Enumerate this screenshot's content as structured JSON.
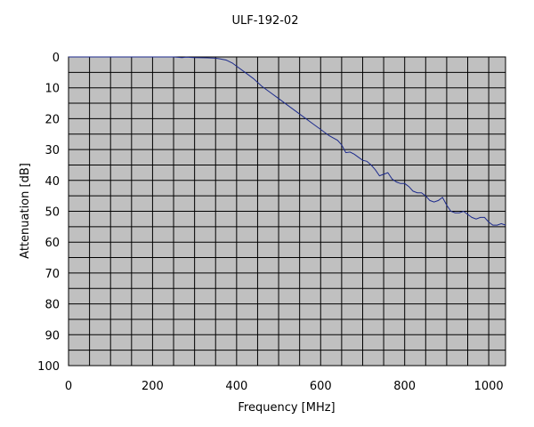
{
  "chart_data": {
    "type": "line",
    "title": "ULF-192-02",
    "xlabel": "Frequency [MHz]",
    "ylabel": "Attenuation [dB]",
    "xlim": [
      0,
      1040
    ],
    "ylim": [
      0,
      100
    ],
    "y_inverted": true,
    "x_ticks": [
      0,
      200,
      400,
      600,
      800,
      1000
    ],
    "y_ticks": [
      0,
      10,
      20,
      30,
      40,
      50,
      60,
      70,
      80,
      90,
      100
    ],
    "grid": true,
    "colors": {
      "plot_background": "#c0c0c0",
      "grid": "#000000",
      "line": "#1c2a8c"
    },
    "series": [
      {
        "x": [
          0,
          50,
          100,
          150,
          200,
          250,
          270,
          280,
          300,
          330,
          350,
          360,
          375,
          390,
          400,
          420,
          440,
          460,
          480,
          500,
          520,
          540,
          560,
          580,
          600,
          620,
          640,
          650,
          660,
          670,
          680,
          690,
          700,
          710,
          720,
          730,
          740,
          750,
          760,
          770,
          780,
          790,
          800,
          810,
          820,
          830,
          840,
          850,
          860,
          870,
          880,
          890,
          900,
          910,
          920,
          930,
          940,
          950,
          960,
          970,
          980,
          990,
          1000,
          1010,
          1020,
          1030,
          1040
        ],
        "y": [
          0,
          0,
          0,
          0,
          0,
          0,
          0.2,
          0.1,
          0.2,
          0.3,
          0.4,
          0.6,
          1.0,
          2.0,
          3.0,
          5.0,
          7.0,
          9.5,
          11.5,
          13.5,
          15.5,
          17.5,
          19.5,
          21.5,
          23.5,
          25.5,
          27.0,
          28.5,
          31.0,
          30.8,
          31.5,
          32.5,
          33.5,
          33.8,
          35.0,
          36.5,
          38.5,
          38.0,
          37.5,
          39.5,
          40.5,
          41.0,
          41.0,
          42.0,
          43.5,
          44.0,
          44.0,
          45.0,
          46.5,
          47.0,
          46.5,
          45.5,
          48.0,
          50.0,
          50.5,
          50.5,
          50.0,
          51.0,
          52.0,
          52.5,
          52.0,
          52.0,
          53.5,
          54.5,
          54.5,
          54.0,
          54.5
        ]
      }
    ]
  }
}
